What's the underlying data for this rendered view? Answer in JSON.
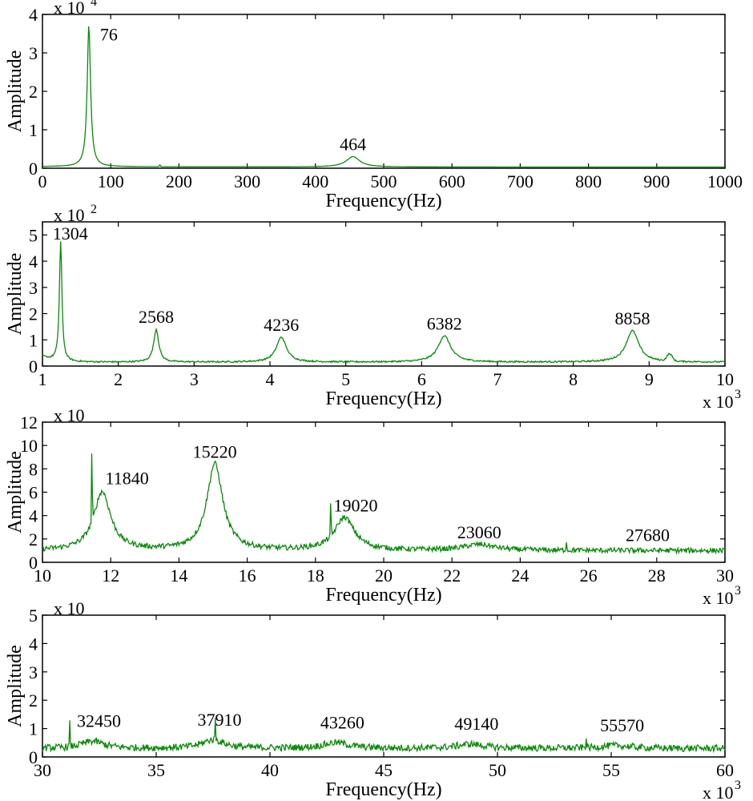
{
  "colors": {
    "line": "#0a8a0a",
    "axis": "#000000",
    "background": "#ffffff"
  },
  "chart_data": [
    {
      "type": "line",
      "title": "",
      "xlabel": "Frequency(Hz)",
      "ylabel": "Amplitude",
      "y_scale_label": "x 10",
      "y_scale_exp": "4",
      "x_scale_label": "",
      "x_scale_exp": "",
      "xlim": [
        0,
        1000
      ],
      "ylim": [
        0,
        4
      ],
      "x_ticks": [
        0,
        100,
        200,
        300,
        400,
        500,
        600,
        700,
        800,
        900,
        1000
      ],
      "y_ticks": [
        0,
        1,
        2,
        3,
        4
      ],
      "grid": false,
      "baseline": 0.03,
      "peaks": [
        {
          "label": "76",
          "x": 68,
          "y": 3.7,
          "width": 3
        },
        {
          "label": "464",
          "x": 455,
          "y": 0.3,
          "width": 12
        }
      ],
      "minor_peaks": [
        {
          "x": 172,
          "y": 0.08,
          "width": 1
        }
      ],
      "series": [
        {
          "values": "generated-from-peaks"
        }
      ]
    },
    {
      "type": "line",
      "title": "",
      "xlabel": "Frequency(Hz)",
      "ylabel": "Amplitude",
      "y_scale_label": "x 10",
      "y_scale_exp": "2",
      "x_scale_label": "x 10",
      "x_scale_exp": "3",
      "xlim": [
        1,
        10
      ],
      "ylim": [
        0,
        5.5
      ],
      "x_ticks": [
        1,
        2,
        3,
        4,
        5,
        6,
        7,
        8,
        9,
        10
      ],
      "y_ticks": [
        0,
        1,
        2,
        3,
        4,
        5
      ],
      "grid": false,
      "baseline": 0.15,
      "peaks": [
        {
          "label": "1304",
          "x": 1.24,
          "y": 4.7,
          "width": 0.02
        },
        {
          "label": "2568",
          "x": 2.5,
          "y": 1.4,
          "width": 0.04
        },
        {
          "label": "4236",
          "x": 4.15,
          "y": 1.1,
          "width": 0.08
        },
        {
          "label": "6382",
          "x": 6.3,
          "y": 1.15,
          "width": 0.1
        },
        {
          "label": "8858",
          "x": 8.78,
          "y": 1.35,
          "width": 0.1
        }
      ],
      "minor_peaks": [
        {
          "x": 9.27,
          "y": 0.42,
          "width": 0.05
        }
      ],
      "series": [
        {
          "values": "generated-from-peaks"
        }
      ]
    },
    {
      "type": "line",
      "title": "",
      "xlabel": "Frequency(Hz)",
      "ylabel": "Amplitude",
      "y_scale_label": "x 10",
      "y_scale_exp": "",
      "x_scale_label": "x 10",
      "x_scale_exp": "3",
      "xlim": [
        10,
        30
      ],
      "ylim": [
        0,
        12
      ],
      "x_ticks": [
        10,
        12,
        14,
        16,
        18,
        20,
        22,
        24,
        26,
        28,
        30
      ],
      "y_ticks": [
        0,
        2,
        4,
        6,
        8,
        10,
        12
      ],
      "grid": false,
      "baseline": 1.0,
      "peaks": [
        {
          "label": "11840",
          "x": 11.75,
          "y": 6.0,
          "width": 0.3
        },
        {
          "label": "15220",
          "x": 15.05,
          "y": 8.4,
          "width": 0.28
        },
        {
          "label": "19020",
          "x": 18.85,
          "y": 3.8,
          "width": 0.35
        },
        {
          "label": "23060",
          "x": 22.8,
          "y": 1.5,
          "width": 0.55
        },
        {
          "label": "27680",
          "x": 27.5,
          "y": 1.0,
          "width": 0.6
        }
      ],
      "minor_peaks": [
        {
          "x": 11.45,
          "y": 7.9,
          "width": 0.01
        },
        {
          "x": 18.45,
          "y": 4.1,
          "width": 0.01
        },
        {
          "x": 25.35,
          "y": 2.0,
          "width": 0.01
        }
      ],
      "series": [
        {
          "values": "generated-from-peaks"
        }
      ]
    },
    {
      "type": "line",
      "title": "",
      "xlabel": "Frequency(Hz)",
      "ylabel": "Amplitude",
      "y_scale_label": "x 10",
      "y_scale_exp": "",
      "x_scale_label": "x 10",
      "x_scale_exp": "3",
      "xlim": [
        30,
        60
      ],
      "ylim": [
        0,
        5
      ],
      "x_ticks": [
        30,
        35,
        40,
        45,
        50,
        55,
        60
      ],
      "y_ticks": [
        0,
        1,
        2,
        3,
        4,
        5
      ],
      "grid": false,
      "baseline": 0.3,
      "peaks": [
        {
          "label": "32450",
          "x": 32.2,
          "y": 0.55,
          "width": 0.6
        },
        {
          "label": "37910",
          "x": 37.5,
          "y": 0.6,
          "width": 0.6
        },
        {
          "label": "43260",
          "x": 42.9,
          "y": 0.5,
          "width": 0.7
        },
        {
          "label": "49140",
          "x": 48.8,
          "y": 0.45,
          "width": 0.7
        },
        {
          "label": "55570",
          "x": 55.2,
          "y": 0.4,
          "width": 0.8
        }
      ],
      "minor_peaks": [
        {
          "x": 31.2,
          "y": 1.15,
          "width": 0.01
        },
        {
          "x": 37.6,
          "y": 1.1,
          "width": 0.01
        },
        {
          "x": 53.9,
          "y": 0.7,
          "width": 0.01
        }
      ],
      "series": [
        {
          "values": "generated-from-peaks"
        }
      ]
    }
  ]
}
